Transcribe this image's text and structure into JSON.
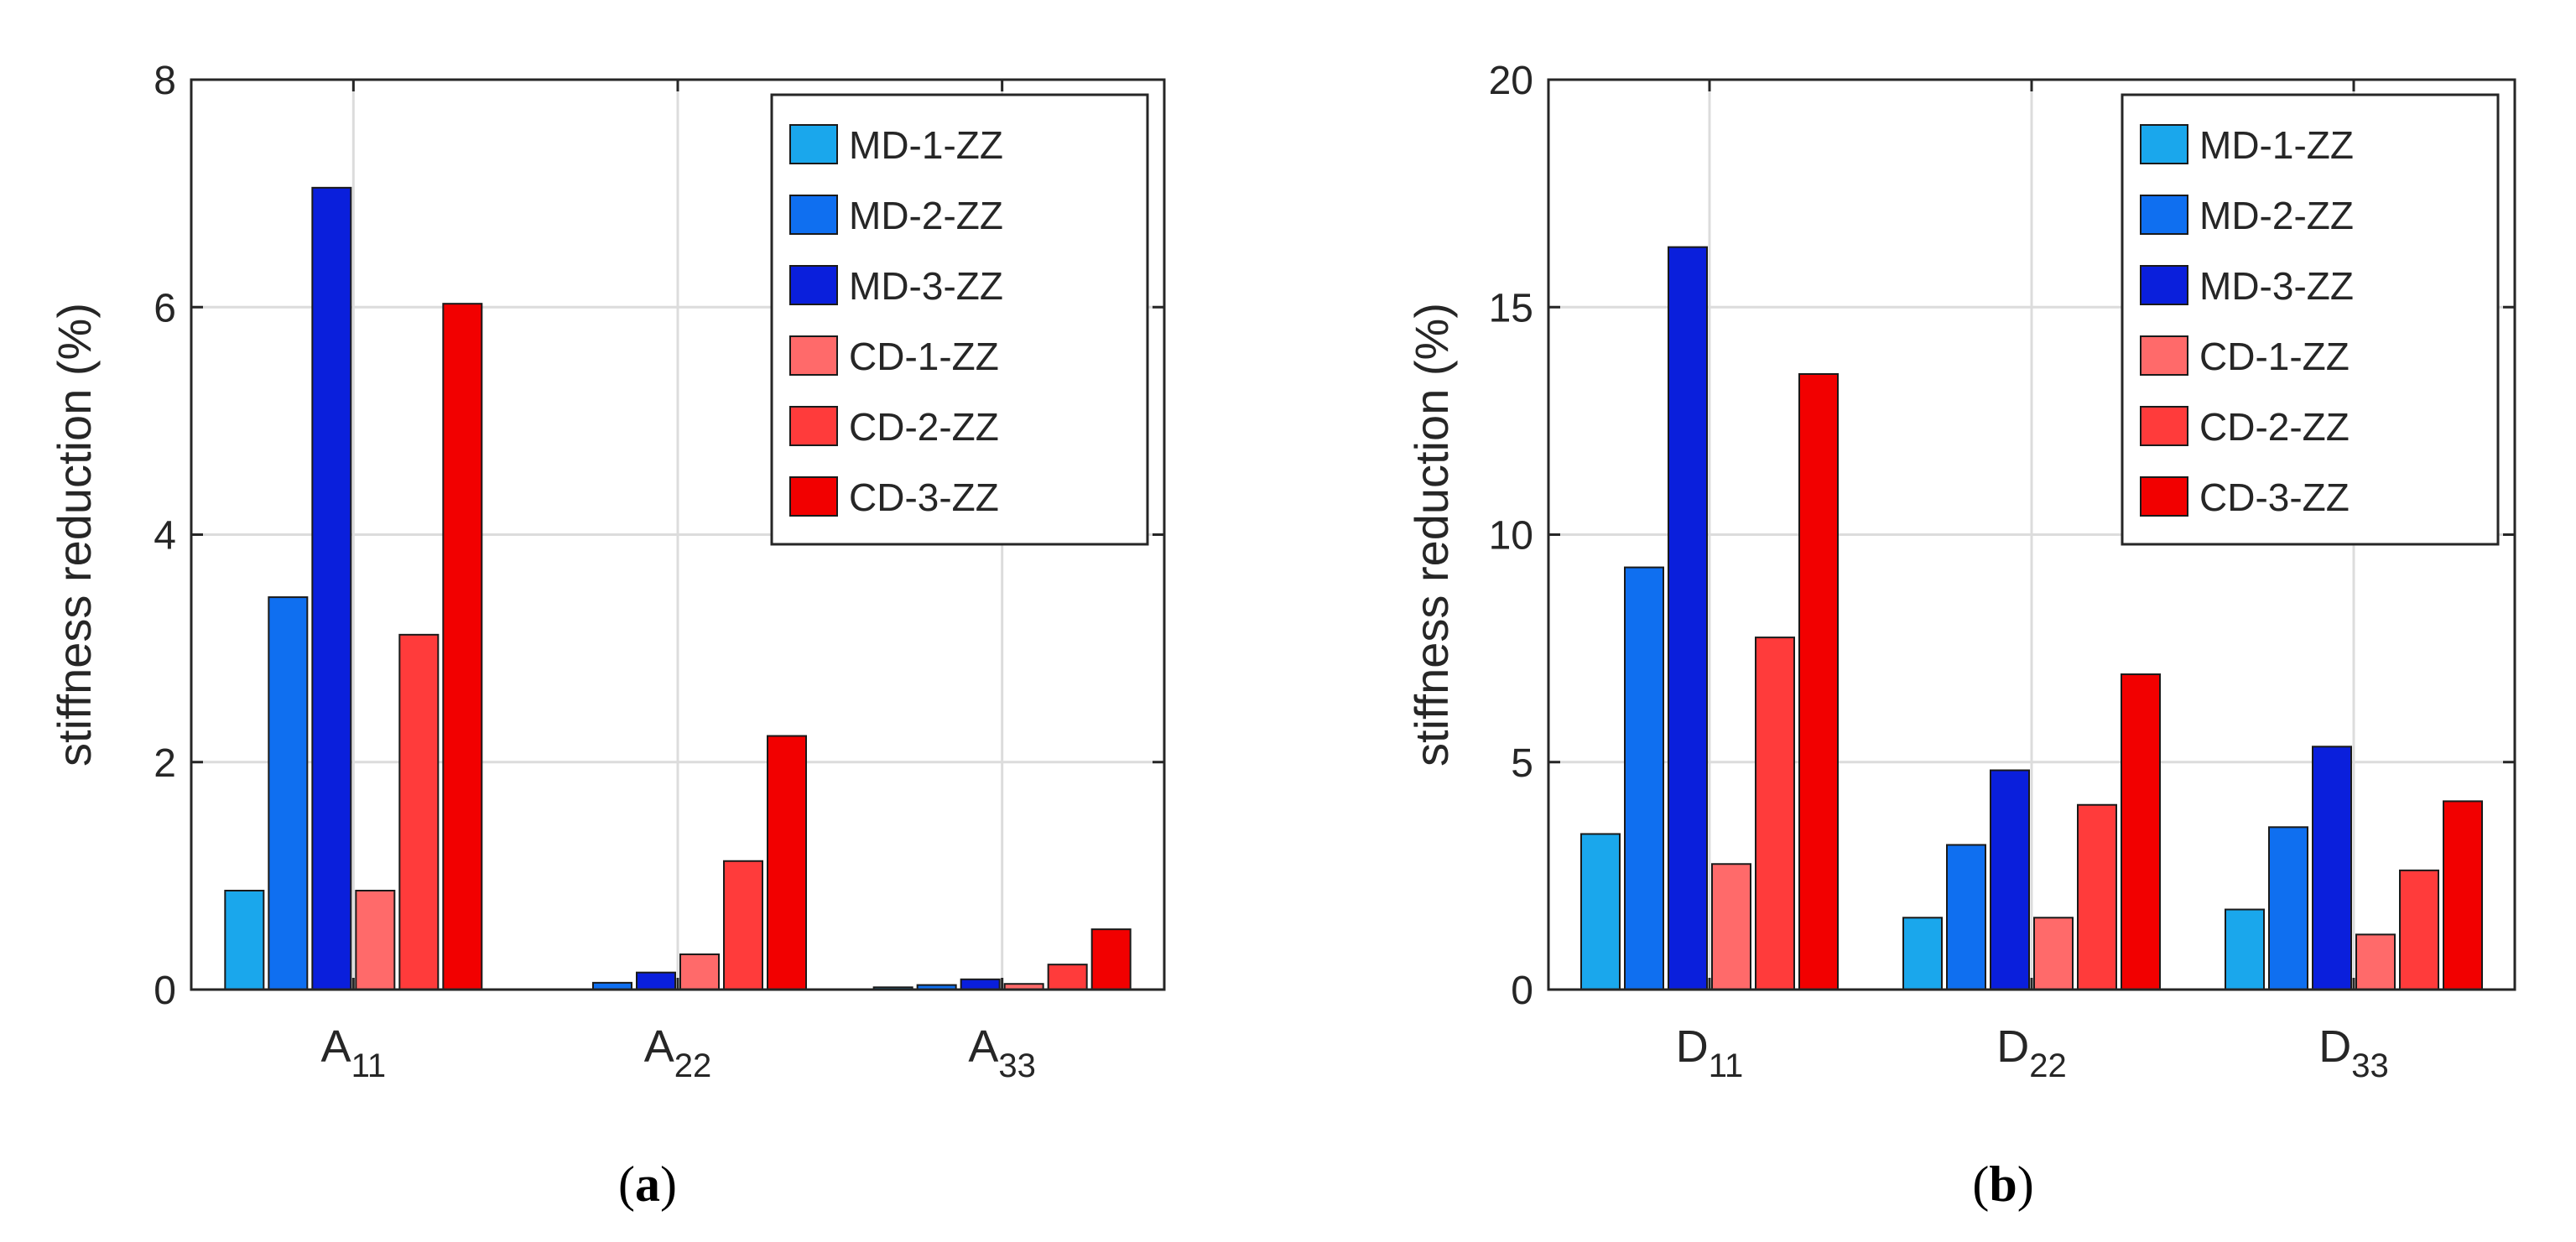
{
  "chart_data": [
    {
      "type": "bar",
      "panel_label": {
        "open": "(",
        "letter": "a",
        "close": ")"
      },
      "ylabel": "stiffness reduction (%)",
      "ylim": [
        0,
        8
      ],
      "yticks": [
        0,
        2,
        4,
        6,
        8
      ],
      "grid": true,
      "legend_position": "top-right",
      "categories": [
        {
          "main": "A",
          "sub": "11"
        },
        {
          "main": "A",
          "sub": "22"
        },
        {
          "main": "A",
          "sub": "33"
        }
      ],
      "series": [
        {
          "name": "MD-1-ZZ",
          "color": "#1aa7ec",
          "values": [
            0.87,
            0.0,
            0.02
          ]
        },
        {
          "name": "MD-2-ZZ",
          "color": "#0f6ff0",
          "values": [
            3.45,
            0.06,
            0.04
          ]
        },
        {
          "name": "MD-3-ZZ",
          "color": "#0a1fdc",
          "values": [
            7.05,
            0.15,
            0.09
          ]
        },
        {
          "name": "CD-1-ZZ",
          "color": "#ff6a6a",
          "values": [
            0.87,
            0.31,
            0.05
          ]
        },
        {
          "name": "CD-2-ZZ",
          "color": "#ff3b3b",
          "values": [
            3.12,
            1.13,
            0.22
          ]
        },
        {
          "name": "CD-3-ZZ",
          "color": "#f20000",
          "values": [
            6.03,
            2.23,
            0.53
          ]
        }
      ]
    },
    {
      "type": "bar",
      "panel_label": {
        "open": "(",
        "letter": "b",
        "close": ")"
      },
      "ylabel": "stiffness reduction (%)",
      "ylim": [
        0,
        20
      ],
      "yticks": [
        0,
        5,
        10,
        15,
        20
      ],
      "grid": true,
      "legend_position": "top-right",
      "categories": [
        {
          "main": "D",
          "sub": "11"
        },
        {
          "main": "D",
          "sub": "22"
        },
        {
          "main": "D",
          "sub": "33"
        }
      ],
      "series": [
        {
          "name": "MD-1-ZZ",
          "color": "#1aa7ec",
          "values": [
            3.42,
            1.58,
            1.76
          ]
        },
        {
          "name": "MD-2-ZZ",
          "color": "#0f6ff0",
          "values": [
            9.28,
            3.18,
            3.57
          ]
        },
        {
          "name": "MD-3-ZZ",
          "color": "#0a1fdc",
          "values": [
            16.32,
            4.82,
            5.34
          ]
        },
        {
          "name": "CD-1-ZZ",
          "color": "#ff6a6a",
          "values": [
            2.76,
            1.58,
            1.21
          ]
        },
        {
          "name": "CD-2-ZZ",
          "color": "#ff3b3b",
          "values": [
            7.74,
            4.06,
            2.62
          ]
        },
        {
          "name": "CD-3-ZZ",
          "color": "#f20000",
          "values": [
            13.53,
            6.93,
            4.14
          ]
        }
      ]
    }
  ]
}
